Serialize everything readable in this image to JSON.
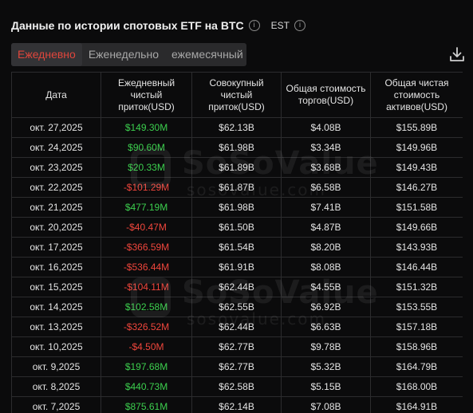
{
  "header": {
    "title": "Данные по истории спотовых ETF на BTC",
    "timezone": "EST"
  },
  "tabs": [
    {
      "label": "Ежедневно",
      "active": true
    },
    {
      "label": "Еженедельно",
      "active": false
    },
    {
      "label": "ежемесячный",
      "active": false
    }
  ],
  "table": {
    "columns": [
      "Дата",
      "Ежедневный чистый приток(USD)",
      "Совокупный чистый приток(USD)",
      "Общая стоимость торгов(USD)",
      "Общая чистая стоимость активов(USD)"
    ],
    "rows": [
      {
        "date": "окт. 27,2025",
        "daily": "$149.30M",
        "sign": "pos",
        "cumulative": "$62.13B",
        "volume": "$4.08B",
        "assets": "$155.89B"
      },
      {
        "date": "окт. 24,2025",
        "daily": "$90.60M",
        "sign": "pos",
        "cumulative": "$61.98B",
        "volume": "$3.34B",
        "assets": "$149.96B"
      },
      {
        "date": "окт. 23,2025",
        "daily": "$20.33M",
        "sign": "pos",
        "cumulative": "$61.89B",
        "volume": "$3.68B",
        "assets": "$149.43B"
      },
      {
        "date": "окт. 22,2025",
        "daily": "-$101.29M",
        "sign": "neg",
        "cumulative": "$61.87B",
        "volume": "$6.58B",
        "assets": "$146.27B"
      },
      {
        "date": "окт. 21,2025",
        "daily": "$477.19M",
        "sign": "pos",
        "cumulative": "$61.98B",
        "volume": "$7.41B",
        "assets": "$151.58B"
      },
      {
        "date": "окт. 20,2025",
        "daily": "-$40.47M",
        "sign": "neg",
        "cumulative": "$61.50B",
        "volume": "$4.87B",
        "assets": "$149.66B"
      },
      {
        "date": "окт. 17,2025",
        "daily": "-$366.59M",
        "sign": "neg",
        "cumulative": "$61.54B",
        "volume": "$8.20B",
        "assets": "$143.93B"
      },
      {
        "date": "окт. 16,2025",
        "daily": "-$536.44M",
        "sign": "neg",
        "cumulative": "$61.91B",
        "volume": "$8.08B",
        "assets": "$146.44B"
      },
      {
        "date": "окт. 15,2025",
        "daily": "-$104.11M",
        "sign": "neg",
        "cumulative": "$62.44B",
        "volume": "$4.55B",
        "assets": "$151.32B"
      },
      {
        "date": "окт. 14,2025",
        "daily": "$102.58M",
        "sign": "pos",
        "cumulative": "$62.55B",
        "volume": "$6.92B",
        "assets": "$153.55B"
      },
      {
        "date": "окт. 13,2025",
        "daily": "-$326.52M",
        "sign": "neg",
        "cumulative": "$62.44B",
        "volume": "$6.63B",
        "assets": "$157.18B"
      },
      {
        "date": "окт. 10,2025",
        "daily": "-$4.50M",
        "sign": "neg",
        "cumulative": "$62.77B",
        "volume": "$9.78B",
        "assets": "$158.96B"
      },
      {
        "date": "окт. 9,2025",
        "daily": "$197.68M",
        "sign": "pos",
        "cumulative": "$62.77B",
        "volume": "$5.32B",
        "assets": "$164.79B"
      },
      {
        "date": "окт. 8,2025",
        "daily": "$440.73M",
        "sign": "pos",
        "cumulative": "$62.58B",
        "volume": "$5.15B",
        "assets": "$168.00B"
      },
      {
        "date": "окт. 7,2025",
        "daily": "$875.61M",
        "sign": "pos",
        "cumulative": "$62.14B",
        "volume": "$7.08B",
        "assets": "$164.91B"
      }
    ]
  },
  "watermark": {
    "brand": "SoSoValue",
    "url": "sosovalue.com"
  },
  "icons": {
    "info": "info-icon",
    "download": "download-icon"
  },
  "colors": {
    "positive": "#3ccf4e",
    "negative": "#f0463c",
    "accent": "#e0463c"
  }
}
